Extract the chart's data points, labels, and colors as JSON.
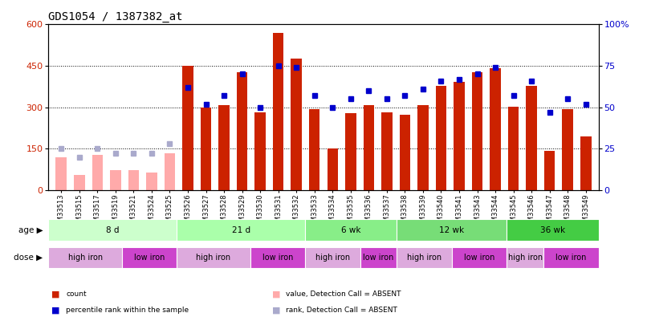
{
  "title": "GDS1054 / 1387382_at",
  "samples": [
    "GSM33513",
    "GSM33515",
    "GSM33517",
    "GSM33519",
    "GSM33521",
    "GSM33524",
    "GSM33525",
    "GSM33526",
    "GSM33527",
    "GSM33528",
    "GSM33529",
    "GSM33530",
    "GSM33531",
    "GSM33532",
    "GSM33533",
    "GSM33534",
    "GSM33535",
    "GSM33536",
    "GSM33537",
    "GSM33538",
    "GSM33539",
    "GSM33540",
    "GSM33541",
    "GSM33543",
    "GSM33544",
    "GSM33545",
    "GSM33546",
    "GSM33547",
    "GSM33548",
    "GSM33549"
  ],
  "bar_values": [
    120,
    55,
    128,
    72,
    72,
    65,
    132,
    450,
    298,
    308,
    427,
    282,
    568,
    476,
    292,
    152,
    278,
    308,
    283,
    272,
    307,
    377,
    392,
    427,
    442,
    303,
    377,
    142,
    293,
    193
  ],
  "absent_flags": [
    true,
    true,
    true,
    true,
    true,
    true,
    true,
    false,
    false,
    false,
    false,
    false,
    false,
    false,
    false,
    false,
    false,
    false,
    false,
    false,
    false,
    false,
    false,
    false,
    false,
    false,
    false,
    false,
    false,
    false
  ],
  "percentile_values_pct": [
    25,
    20,
    25,
    22,
    22,
    22,
    28,
    62,
    52,
    57,
    70,
    50,
    75,
    74,
    57,
    50,
    55,
    60,
    55,
    57,
    61,
    66,
    67,
    70,
    74,
    57,
    66,
    47,
    55,
    52
  ],
  "percentile_absent_flags": [
    true,
    true,
    true,
    true,
    true,
    true,
    true,
    false,
    false,
    false,
    false,
    false,
    false,
    false,
    false,
    false,
    false,
    false,
    false,
    false,
    false,
    false,
    false,
    false,
    false,
    false,
    false,
    false,
    false,
    false
  ],
  "bar_color_present": "#cc2200",
  "bar_color_absent": "#ffaaaa",
  "dot_color_present": "#0000cc",
  "dot_color_absent": "#aaaacc",
  "ylim_left": [
    0,
    600
  ],
  "ylim_right": [
    0,
    100
  ],
  "yticks_left": [
    0,
    150,
    300,
    450,
    600
  ],
  "yticks_right": [
    0,
    25,
    50,
    75,
    100
  ],
  "age_groups": [
    {
      "label": "8 d",
      "start": 0,
      "end": 7,
      "color": "#ccffcc"
    },
    {
      "label": "21 d",
      "start": 7,
      "end": 14,
      "color": "#aaffaa"
    },
    {
      "label": "6 wk",
      "start": 14,
      "end": 19,
      "color": "#88ee88"
    },
    {
      "label": "12 wk",
      "start": 19,
      "end": 25,
      "color": "#77dd77"
    },
    {
      "label": "36 wk",
      "start": 25,
      "end": 30,
      "color": "#44cc44"
    }
  ],
  "dose_groups": [
    {
      "label": "high iron",
      "start": 0,
      "end": 4,
      "color": "#ddaadd"
    },
    {
      "label": "low iron",
      "start": 4,
      "end": 7,
      "color": "#cc44cc"
    },
    {
      "label": "high iron",
      "start": 7,
      "end": 11,
      "color": "#ddaadd"
    },
    {
      "label": "low iron",
      "start": 11,
      "end": 14,
      "color": "#cc44cc"
    },
    {
      "label": "high iron",
      "start": 14,
      "end": 17,
      "color": "#ddaadd"
    },
    {
      "label": "low iron",
      "start": 17,
      "end": 19,
      "color": "#cc44cc"
    },
    {
      "label": "high iron",
      "start": 19,
      "end": 22,
      "color": "#ddaadd"
    },
    {
      "label": "low iron",
      "start": 22,
      "end": 25,
      "color": "#cc44cc"
    },
    {
      "label": "high iron",
      "start": 25,
      "end": 27,
      "color": "#ddaadd"
    },
    {
      "label": "low iron",
      "start": 27,
      "end": 30,
      "color": "#cc44cc"
    }
  ],
  "background_color": "#ffffff",
  "title_fontsize": 10,
  "tick_fontsize": 6,
  "label_fontsize": 7.5,
  "row_label_fontsize": 7.5
}
